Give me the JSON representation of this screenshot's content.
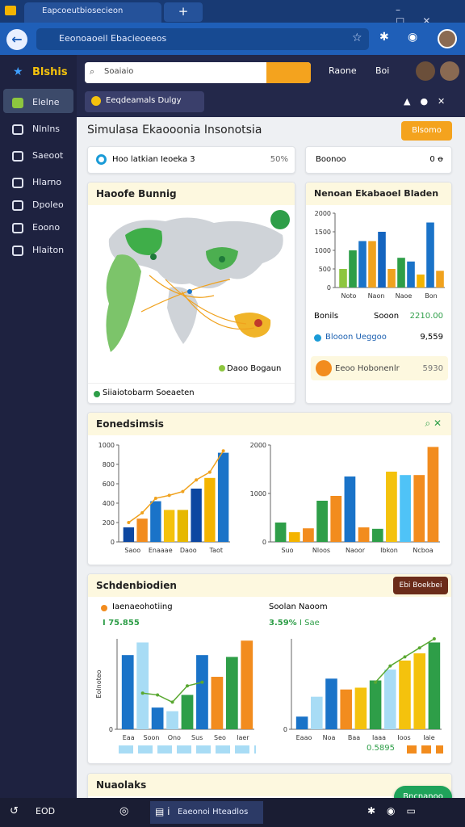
{
  "browser": {
    "tab": "Eapcoeutbiosecieon",
    "url": "Eeonoaoeil Ebacieoeeos"
  },
  "sidebar": {
    "brand": "Blshis",
    "items": [
      "Elelne",
      "Nlnlns",
      "Saeoot",
      "Hlarno",
      "Dpoleo",
      "Eoono",
      "Hlaiton"
    ]
  },
  "topbar": {
    "search": "Soaiaio",
    "links": [
      "Raone",
      "Boi"
    ]
  },
  "breadcrumb": "Eeqdeamals Dulgy",
  "page": {
    "title": "Simulasa Ekaooonia Insonotsia",
    "action": "Blsomo"
  },
  "stats": [
    {
      "label": "Hoo latkian Ieoeka 3",
      "value": "50%"
    },
    {
      "label": "Boonoo",
      "value": "0 ꝋ"
    }
  ],
  "map": {
    "title": "Haoofe Bunnig",
    "legend": "Daoo Bogaun",
    "footer": "Siiaiotobarm Soeaeten"
  },
  "summary": {
    "title": "Nenoan Ekabaoel Bladen",
    "rows": [
      {
        "label": "Bonils",
        "sub": "Sooon",
        "value": "2210.00"
      },
      {
        "label": "Blooon Ueggoo",
        "value": "9,559"
      },
      {
        "label": "Eeoo Hobonenlr",
        "value": "5930"
      }
    ]
  },
  "sections": [
    {
      "title": "Eonedsimsis"
    },
    {
      "title": "Schdenbiodien",
      "button": "Ebi Boekbei",
      "panels": [
        {
          "title": "Iaenaeohotiing",
          "metric": "I 75.855"
        },
        {
          "title": "Soolan Naoom",
          "metric": "3.59%",
          "tag": "I Sae",
          "foot": "0.5895"
        }
      ]
    },
    {
      "title": "Nuaolaks"
    }
  ],
  "fab": "Bncnanoo",
  "taskbar": {
    "time": "EOD",
    "window": "Eaeonoi Hteadlos"
  },
  "charts": [
    {
      "ylim": [
        0,
        2000
      ],
      "yticks": [
        0,
        500,
        1000,
        1500,
        2000
      ],
      "categories": [
        "Noto",
        "Naon",
        "Naoe",
        "Bon"
      ],
      "bars": [
        {
          "color": "#8dc63f",
          "value": 500
        },
        {
          "color": "#2e9e48",
          "value": 1000
        },
        {
          "color": "#1a73c8",
          "value": 1250
        },
        {
          "color": "#f0a21e",
          "value": 1250
        },
        {
          "color": "#1565c0",
          "value": 1500
        },
        {
          "color": "#f0a21e",
          "value": 500
        },
        {
          "color": "#2e9e48",
          "value": 800
        },
        {
          "color": "#1a73c8",
          "value": 700
        },
        {
          "color": "#f4b400",
          "value": 350
        },
        {
          "color": "#1a73c8",
          "value": 1750
        },
        {
          "color": "#f0a21e",
          "value": 450
        }
      ]
    },
    {
      "ylim": [
        0,
        1000
      ],
      "yticks": [
        0,
        200,
        400,
        600,
        800,
        1000
      ],
      "categories": [
        "Saoo",
        "Enaaae",
        "Daoo",
        "Taot"
      ],
      "bars": [
        {
          "color": "#0d47a1",
          "value": 150
        },
        {
          "color": "#f28c1e",
          "value": 240
        },
        {
          "color": "#1a73c8",
          "value": 420
        },
        {
          "color": "#f4c20d",
          "value": 330
        },
        {
          "color": "#e6b800",
          "value": 330
        },
        {
          "color": "#0d47a1",
          "value": 550
        },
        {
          "color": "#f4b400",
          "value": 660
        },
        {
          "color": "#1a73c8",
          "value": 920
        }
      ],
      "line": [
        200,
        300,
        450,
        480,
        520,
        640,
        720,
        940
      ],
      "line_color": "#f0a21e"
    },
    {
      "ylim": [
        0,
        2000
      ],
      "yticks": [
        0,
        1000,
        2000
      ],
      "categories": [
        "Suo",
        "Nloos",
        "Naoor",
        "Ibkon",
        "Ncboa"
      ],
      "bars": [
        {
          "color": "#2e9e48",
          "value": 400
        },
        {
          "color": "#f4b400",
          "value": 200
        },
        {
          "color": "#f28c1e",
          "value": 280
        },
        {
          "color": "#2e9e48",
          "value": 850
        },
        {
          "color": "#f28c1e",
          "value": 950
        },
        {
          "color": "#1a73c8",
          "value": 1350
        },
        {
          "color": "#f28c1e",
          "value": 300
        },
        {
          "color": "#2e9e48",
          "value": 270
        },
        {
          "color": "#f4c20d",
          "value": 1450
        },
        {
          "color": "#4fc3f7",
          "value": 1380
        },
        {
          "color": "#f28c1e",
          "value": 1380
        },
        {
          "color": "#f28c1e",
          "value": 1960
        }
      ]
    },
    {
      "ylim": [
        0,
        100
      ],
      "yticks": [
        0
      ],
      "ylabel": "Eolnoteo",
      "categories": [
        "Eaa",
        "Soon",
        "Ono",
        "Sus",
        "Seo",
        "Iaer"
      ],
      "bars": [
        {
          "color": "#1a73c8",
          "value": 82
        },
        {
          "color": "#a8dcf5",
          "value": 96
        },
        {
          "color": "#1a73c8",
          "value": 24
        },
        {
          "color": "#a8dcf5",
          "value": 20
        },
        {
          "color": "#2e9e48",
          "value": 38
        },
        {
          "color": "#1a73c8",
          "value": 82
        },
        {
          "color": "#f28c1e",
          "value": 58
        },
        {
          "color": "#2e9e48",
          "value": 80
        },
        {
          "color": "#f28c1e",
          "value": 98
        }
      ],
      "line": [
        null,
        40,
        38,
        30,
        48,
        52,
        null,
        null,
        null
      ],
      "line_color": "#5aa832"
    },
    {
      "ylim": [
        0,
        100
      ],
      "yticks": [
        0
      ],
      "categories": [
        "Eaao",
        "Noa",
        "Baa",
        "Iaaa",
        "Ioos",
        "Iaie"
      ],
      "bars": [
        {
          "color": "#1a73c8",
          "value": 14
        },
        {
          "color": "#a8dcf5",
          "value": 36
        },
        {
          "color": "#1a73c8",
          "value": 56
        },
        {
          "color": "#f28c1e",
          "value": 44
        },
        {
          "color": "#f4c20d",
          "value": 46
        },
        {
          "color": "#2e9e48",
          "value": 54
        },
        {
          "color": "#a8dcf5",
          "value": 66
        },
        {
          "color": "#f4c20d",
          "value": 76
        },
        {
          "color": "#f4c20d",
          "value": 84
        },
        {
          "color": "#2e9e48",
          "value": 96
        }
      ],
      "line": [
        null,
        null,
        null,
        null,
        null,
        52,
        70,
        80,
        90,
        100
      ],
      "line_color": "#5aa832"
    }
  ]
}
